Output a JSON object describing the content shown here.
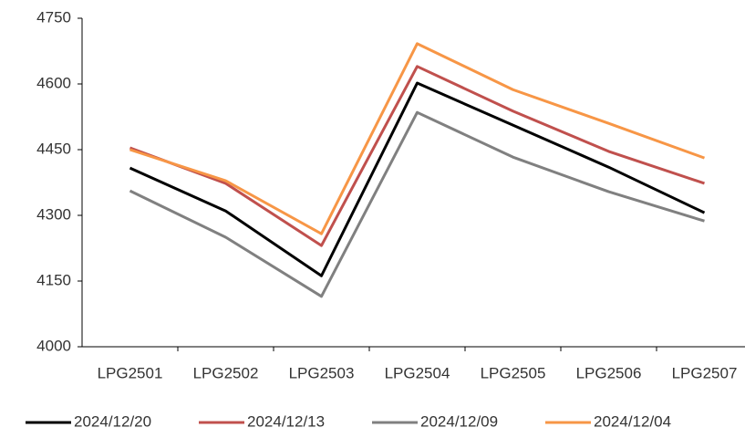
{
  "chart_data": {
    "type": "line",
    "categories": [
      "LPG2501",
      "LPG2502",
      "LPG2503",
      "LPG2504",
      "LPG2505",
      "LPG2506",
      "LPG2507"
    ],
    "series": [
      {
        "name": "2024/12/20",
        "color": "#000000",
        "values": [
          4408,
          4310,
          4162,
          4602,
          4506,
          4410,
          4306
        ]
      },
      {
        "name": "2024/12/13",
        "color": "#c0504d",
        "values": [
          4454,
          4373,
          4231,
          4640,
          4538,
          4446,
          4373
        ]
      },
      {
        "name": "2024/12/09",
        "color": "#808080",
        "values": [
          4356,
          4250,
          4115,
          4535,
          4433,
          4354,
          4287
        ]
      },
      {
        "name": "2024/12/04",
        "color": "#f79646",
        "values": [
          4450,
          4379,
          4258,
          4692,
          4587,
          4510,
          4431
        ]
      }
    ],
    "ylim": [
      4000,
      4750
    ],
    "yticks": [
      4000,
      4150,
      4300,
      4450,
      4600,
      4750
    ],
    "grid": false,
    "legend": "bottom"
  }
}
